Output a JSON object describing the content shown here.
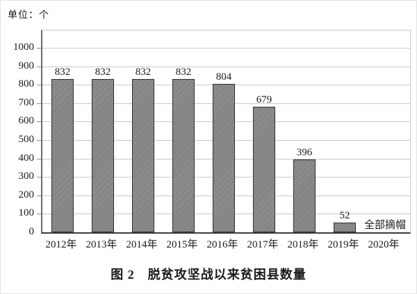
{
  "unit_label": "单位：个",
  "caption": "图 2　脱贫攻坚战以来贫困县数量",
  "chart_data": {
    "type": "bar",
    "title": "图 2　脱贫攻坚战以来贫困县数量",
    "unit_label": "单位：个",
    "categories": [
      "2012年",
      "2013年",
      "2014年",
      "2015年",
      "2016年",
      "2017年",
      "2018年",
      "2019年",
      "2020年"
    ],
    "values": [
      832,
      832,
      832,
      832,
      804,
      679,
      396,
      52,
      null
    ],
    "value_labels": [
      "832",
      "832",
      "832",
      "832",
      "804",
      "679",
      "396",
      "52",
      ""
    ],
    "annotations": [
      {
        "text": "全部摘帽",
        "category": "2020年"
      }
    ],
    "xlabel": "",
    "ylabel": "",
    "ylim": [
      0,
      1100
    ],
    "yticks": [
      0,
      100,
      200,
      300,
      400,
      500,
      600,
      700,
      800,
      900,
      1000
    ],
    "grid": true,
    "legend": null,
    "colors": {
      "bar_fill": "#949494",
      "bar_hatch": "#6e6e6e",
      "bar_border": "#2d2d2d",
      "gridline": "#c9c9c9",
      "tick": "#8a8a8a",
      "axis": "#3a3a3a",
      "text": "#1a1a1a",
      "background": "#ffffff"
    }
  }
}
